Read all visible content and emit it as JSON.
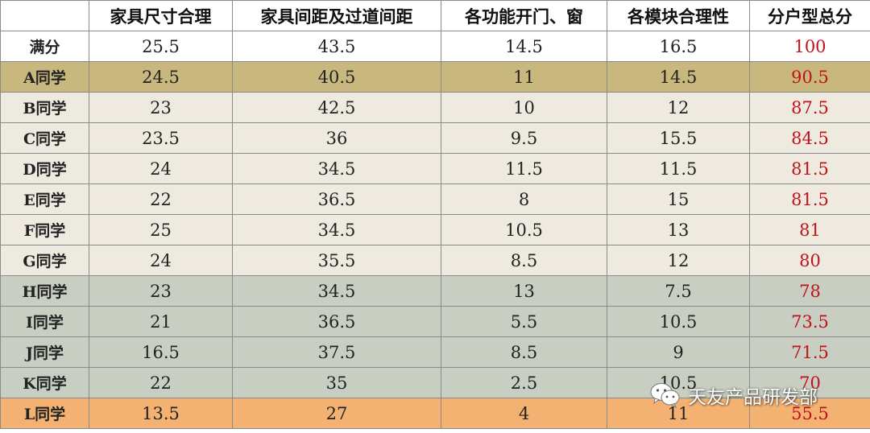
{
  "table": {
    "headers": [
      "",
      "家具尺寸合理",
      "家具间距及过道间距",
      "各功能开门、窗",
      "各模块合理性",
      "分户型总分"
    ],
    "rows": [
      {
        "name": "满分",
        "values": [
          "25.5",
          "43.5",
          "14.5",
          "16.5"
        ],
        "total": "100"
      },
      {
        "name": "A同学",
        "values": [
          "24.5",
          "40.5",
          "11",
          "14.5"
        ],
        "total": "90.5"
      },
      {
        "name": "B同学",
        "values": [
          "23",
          "42.5",
          "10",
          "12"
        ],
        "total": "87.5"
      },
      {
        "name": "C同学",
        "values": [
          "23.5",
          "36",
          "9.5",
          "15.5"
        ],
        "total": "84.5"
      },
      {
        "name": "D同学",
        "values": [
          "24",
          "34.5",
          "11.5",
          "11.5"
        ],
        "total": "81.5"
      },
      {
        "name": "E同学",
        "values": [
          "22",
          "36.5",
          "8",
          "15"
        ],
        "total": "81.5"
      },
      {
        "name": "F同学",
        "values": [
          "25",
          "34.5",
          "10.5",
          "13"
        ],
        "total": "81"
      },
      {
        "name": "G同学",
        "values": [
          "24",
          "35.5",
          "8.5",
          "12"
        ],
        "total": "80"
      },
      {
        "name": "H同学",
        "values": [
          "23",
          "34.5",
          "13",
          "7.5"
        ],
        "total": "78"
      },
      {
        "name": "I同学",
        "values": [
          "21",
          "36.5",
          "5.5",
          "10.5"
        ],
        "total": "73.5"
      },
      {
        "name": "J同学",
        "values": [
          "16.5",
          "37.5",
          "8.5",
          "9"
        ],
        "total": "71.5"
      },
      {
        "name": "K同学",
        "values": [
          "22",
          "35",
          "2.5",
          "10.5"
        ],
        "total": "70"
      },
      {
        "name": "L同学",
        "values": [
          "13.5",
          "27",
          "4",
          "11"
        ],
        "total": "55.5"
      }
    ]
  },
  "colors": {
    "total_text": "#c0121a",
    "row_white": "#ffffff",
    "row_olive": "#c9b87e",
    "row_beige": "#efeae0",
    "row_sage": "#c8cec1",
    "row_orange": "#f3b272"
  },
  "watermark": {
    "icon": "wechat-icon",
    "text": "天友产品研发部"
  }
}
